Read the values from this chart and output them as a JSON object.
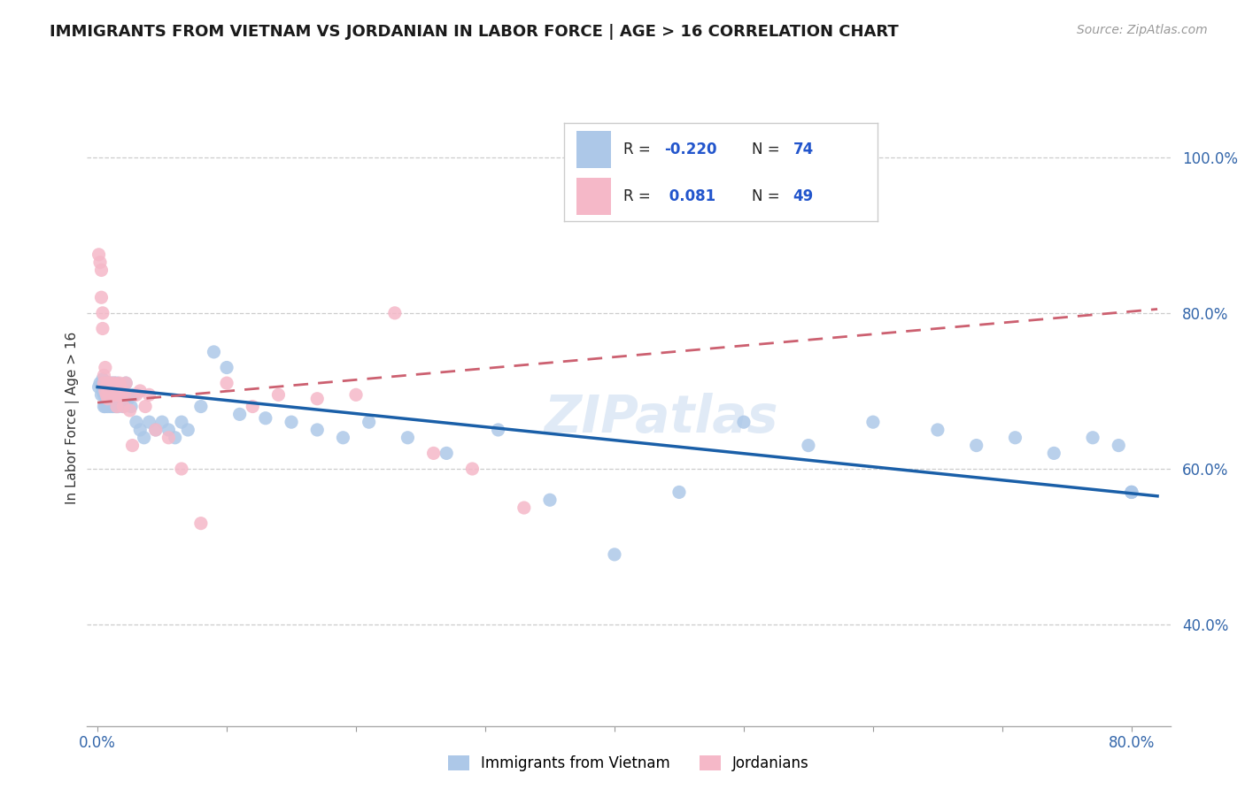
{
  "title": "IMMIGRANTS FROM VIETNAM VS JORDANIAN IN LABOR FORCE | AGE > 16 CORRELATION CHART",
  "source_text": "Source: ZipAtlas.com",
  "ylabel": "In Labor Force | Age > 16",
  "xlim": [
    -0.008,
    0.83
  ],
  "ylim": [
    0.27,
    1.06
  ],
  "xtick_positions": [
    0.0,
    0.1,
    0.2,
    0.3,
    0.4,
    0.5,
    0.6,
    0.7,
    0.8
  ],
  "xticklabels": [
    "0.0%",
    "",
    "",
    "",
    "",
    "",
    "",
    "",
    "80.0%"
  ],
  "ytick_positions": [
    0.4,
    0.6,
    0.8,
    1.0
  ],
  "yticklabels": [
    "40.0%",
    "60.0%",
    "80.0%",
    "100.0%"
  ],
  "r_vietnam": -0.22,
  "n_vietnam": 74,
  "r_jordan": 0.081,
  "n_jordan": 49,
  "color_vietnam": "#adc8e8",
  "color_jordan": "#f5b8c8",
  "line_color_vietnam": "#1a5fa8",
  "line_color_jordan": "#cc6070",
  "watermark": "ZIPatlas",
  "viet_line_x0": 0.0,
  "viet_line_y0": 0.705,
  "viet_line_x1": 0.82,
  "viet_line_y1": 0.565,
  "jord_line_x0": 0.0,
  "jord_line_y0": 0.685,
  "jord_line_x1": 0.82,
  "jord_line_y1": 0.805,
  "vietnam_x": [
    0.001,
    0.002,
    0.003,
    0.004,
    0.004,
    0.005,
    0.005,
    0.006,
    0.006,
    0.007,
    0.007,
    0.008,
    0.008,
    0.009,
    0.009,
    0.01,
    0.01,
    0.011,
    0.011,
    0.012,
    0.012,
    0.013,
    0.013,
    0.014,
    0.014,
    0.015,
    0.015,
    0.016,
    0.017,
    0.018,
    0.019,
    0.02,
    0.021,
    0.022,
    0.024,
    0.026,
    0.028,
    0.03,
    0.033,
    0.036,
    0.04,
    0.045,
    0.05,
    0.055,
    0.06,
    0.065,
    0.07,
    0.08,
    0.09,
    0.1,
    0.11,
    0.13,
    0.15,
    0.17,
    0.19,
    0.21,
    0.24,
    0.27,
    0.31,
    0.35,
    0.4,
    0.45,
    0.5,
    0.55,
    0.6,
    0.65,
    0.68,
    0.71,
    0.74,
    0.77,
    0.79,
    0.8,
    0.8,
    0.8
  ],
  "vietnam_y": [
    0.705,
    0.71,
    0.695,
    0.7,
    0.715,
    0.68,
    0.695,
    0.705,
    0.68,
    0.71,
    0.695,
    0.68,
    0.705,
    0.71,
    0.695,
    0.7,
    0.68,
    0.695,
    0.71,
    0.68,
    0.705,
    0.695,
    0.71,
    0.68,
    0.7,
    0.695,
    0.71,
    0.68,
    0.695,
    0.705,
    0.69,
    0.68,
    0.695,
    0.71,
    0.69,
    0.68,
    0.695,
    0.66,
    0.65,
    0.64,
    0.66,
    0.65,
    0.66,
    0.65,
    0.64,
    0.66,
    0.65,
    0.68,
    0.75,
    0.73,
    0.67,
    0.665,
    0.66,
    0.65,
    0.64,
    0.66,
    0.64,
    0.62,
    0.65,
    0.56,
    0.49,
    0.57,
    0.66,
    0.63,
    0.66,
    0.65,
    0.63,
    0.64,
    0.62,
    0.64,
    0.63,
    0.57,
    0.57,
    0.57
  ],
  "jordan_x": [
    0.001,
    0.002,
    0.003,
    0.003,
    0.004,
    0.004,
    0.005,
    0.005,
    0.006,
    0.006,
    0.007,
    0.007,
    0.008,
    0.008,
    0.009,
    0.01,
    0.01,
    0.011,
    0.012,
    0.013,
    0.014,
    0.015,
    0.015,
    0.016,
    0.017,
    0.018,
    0.019,
    0.02,
    0.021,
    0.022,
    0.025,
    0.027,
    0.03,
    0.033,
    0.037,
    0.04,
    0.045,
    0.055,
    0.065,
    0.08,
    0.1,
    0.12,
    0.14,
    0.17,
    0.2,
    0.23,
    0.26,
    0.29,
    0.33
  ],
  "jordan_y": [
    0.875,
    0.865,
    0.855,
    0.82,
    0.8,
    0.78,
    0.72,
    0.71,
    0.73,
    0.7,
    0.695,
    0.705,
    0.69,
    0.71,
    0.7,
    0.695,
    0.71,
    0.7,
    0.695,
    0.71,
    0.7,
    0.695,
    0.68,
    0.695,
    0.71,
    0.705,
    0.695,
    0.68,
    0.695,
    0.71,
    0.675,
    0.63,
    0.695,
    0.7,
    0.68,
    0.695,
    0.65,
    0.64,
    0.6,
    0.53,
    0.71,
    0.68,
    0.695,
    0.69,
    0.695,
    0.8,
    0.62,
    0.6,
    0.55
  ],
  "figsize": [
    14.06,
    8.92
  ],
  "dpi": 100
}
